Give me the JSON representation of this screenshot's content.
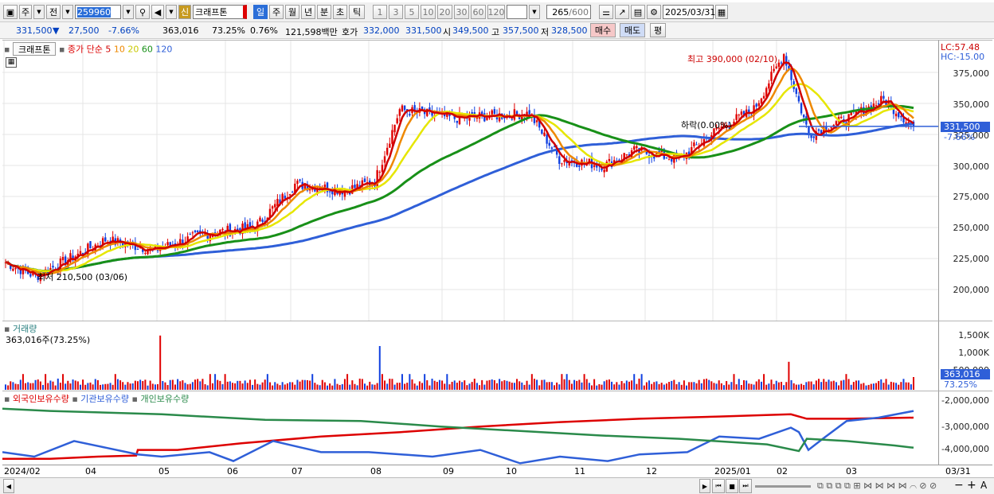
{
  "toolbar": {
    "unit": "주",
    "prev": "전",
    "code": "259960",
    "stock_name": "크래프톤",
    "stock_tag": "신",
    "periods": [
      "일",
      "주",
      "월",
      "년",
      "분",
      "초",
      "틱"
    ],
    "selected_period": "일",
    "nums": [
      "1",
      "3",
      "5",
      "10",
      "20",
      "30",
      "60",
      "120"
    ],
    "count": "265",
    "count_total": "/600",
    "date": "2025/03/31"
  },
  "quote": {
    "price": "331,500",
    "change": "27,500",
    "change_rate": "-7.66%",
    "volume": "363,016",
    "vol_ratio": "73.25%",
    "turnover": "0.76%",
    "amount": "121,598백만",
    "ask_label": "호가",
    "ask1": "332,000",
    "bid1": "331,500",
    "open_label": "시",
    "open": "349,500",
    "high_label": "고",
    "high": "357,500",
    "low_label": "저",
    "low": "328,500",
    "buy": "매수",
    "sell": "매도",
    "eval": "평"
  },
  "price_pane": {
    "stock_tab": "크래프톤",
    "ma_label": "종가 단순",
    "ma": [
      {
        "p": "5",
        "c": "#d00000"
      },
      {
        "p": "10",
        "c": "#ee8800"
      },
      {
        "p": "20",
        "c": "#e6e600"
      },
      {
        "p": "60",
        "c": "#189018"
      },
      {
        "p": "120",
        "c": "#2f5fd8"
      }
    ],
    "lc": "LC:57.48",
    "hc": "HC:-15.00",
    "max_label": "최고 390,000 (02/10)",
    "min_label": "최저 210,500 (03/06)",
    "mid_label": "하락(0.00%)",
    "cur_price": "331,500",
    "cur_rate": "-7.66%",
    "yticks": [
      "375,000",
      "350,000",
      "325,000",
      "300,000",
      "275,000",
      "250,000",
      "225,000",
      "200,000"
    ]
  },
  "volume_pane": {
    "title": "거래량",
    "info": "363,016주(73.25%)",
    "yticks": [
      "1,500K",
      "1,000K",
      "500,000"
    ],
    "cur": "363,016",
    "cur_rate": "73.25%"
  },
  "flow_pane": {
    "legend": [
      "외국인보유수량",
      "기관보유수량",
      "개인보유수량"
    ],
    "colors": [
      "#dd0000",
      "#2f5fd8",
      "#2a8a4a"
    ],
    "yticks": [
      "-2,000,000",
      "-3,000,000",
      "-4,000,000"
    ]
  },
  "xaxis": {
    "labels": [
      "2024/02",
      "04",
      "05",
      "06",
      "07",
      "08",
      "09",
      "10",
      "11",
      "12",
      "2025/01",
      "02",
      "03"
    ],
    "right": "03/31"
  },
  "chart_data": {
    "type": "candlestick",
    "series": [
      {
        "name": "종가",
        "summary_points": [
          {
            "x": "2024/02",
            "y": 222000
          },
          {
            "x": "2024/03/06",
            "y": 210500
          },
          {
            "x": "2024/04",
            "y": 240000
          },
          {
            "x": "2024/05",
            "y": 245000
          },
          {
            "x": "2024/06",
            "y": 250000
          },
          {
            "x": "2024/07",
            "y": 285000
          },
          {
            "x": "2024/08",
            "y": 285000
          },
          {
            "x": "2024/08 말",
            "y": 345000
          },
          {
            "x": "2024/10",
            "y": 340000
          },
          {
            "x": "2024/11",
            "y": 295000
          },
          {
            "x": "2024/12",
            "y": 312000
          },
          {
            "x": "2025/01",
            "y": 330000
          },
          {
            "x": "2025/02/10",
            "y": 390000
          },
          {
            "x": "2025/02 말",
            "y": 325000
          },
          {
            "x": "2025/03",
            "y": 350000
          },
          {
            "x": "2025/03/31",
            "y": 331500
          }
        ]
      }
    ],
    "volume_spikes": [
      {
        "x": "2024/04 말",
        "y": 1550000
      },
      {
        "x": "2024/08 중",
        "y": 1250000
      },
      {
        "x": "2025/02 초",
        "y": 800000
      }
    ]
  }
}
